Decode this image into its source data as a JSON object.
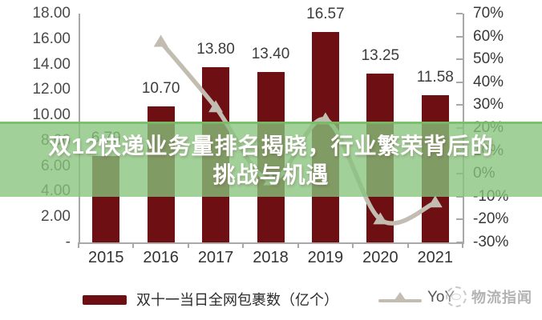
{
  "banner": {
    "line1": "双12快递业务量排名揭晓，行业繁荣背后的",
    "line2": "挑战与机遇"
  },
  "legend": {
    "bars_label": "双十一当日全网包裹数（亿个）",
    "line_label": "YoY"
  },
  "watermark": {
    "text": "物流指闻"
  },
  "chart_data": {
    "type": "bar",
    "categories": [
      "2015",
      "2016",
      "2017",
      "2018",
      "2019",
      "2020",
      "2021"
    ],
    "series": [
      {
        "name": "双十一当日全网包裹数（亿个）",
        "type": "bar",
        "axis": "left",
        "values": [
          6.79,
          10.7,
          13.8,
          13.4,
          16.57,
          13.25,
          11.58
        ],
        "labels": [
          "6.79",
          "10.70",
          "13.80",
          "13.40",
          "16.57",
          "13.25",
          "11.58"
        ]
      },
      {
        "name": "YoY",
        "type": "line",
        "axis": "right",
        "values": [
          null,
          57.6,
          29.0,
          -2.9,
          23.7,
          -20.0,
          -12.6
        ]
      }
    ],
    "left_axis": {
      "min": 0,
      "max": 18,
      "ticks": [
        "18.00",
        "16.00",
        "14.00",
        "12.00",
        "10.00",
        "8.00",
        "6.00",
        "4.00",
        "2.00",
        "-"
      ]
    },
    "right_axis": {
      "min": -30,
      "max": 70,
      "ticks": [
        "70%",
        "60%",
        "50%",
        "40%",
        "30%",
        "20%",
        "10%",
        "0%",
        "-10%",
        "-20%",
        "-30%"
      ]
    },
    "grid": false,
    "legend_position": "bottom",
    "colors": {
      "bar": "#6D0F13",
      "line": "#c3bcb0",
      "banner": "rgba(134,195,124,0.78)"
    }
  }
}
